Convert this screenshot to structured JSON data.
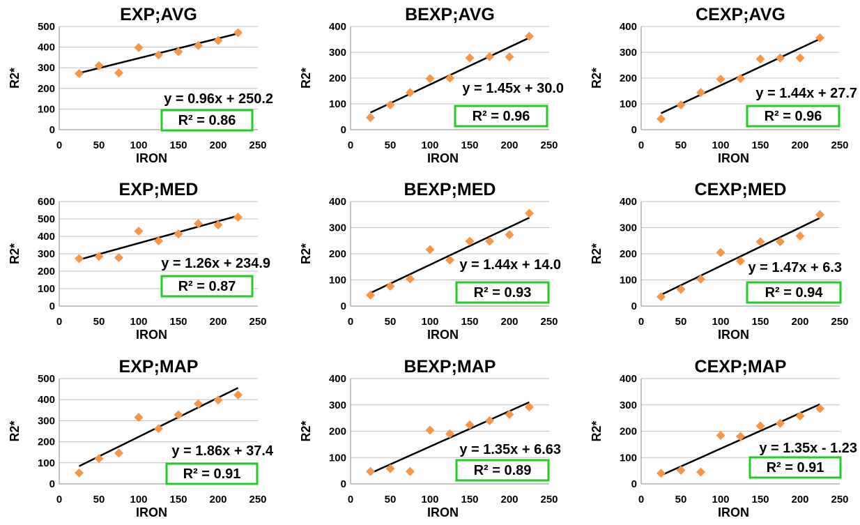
{
  "chart_data": [
    {
      "type": "scatter",
      "title": "EXP;AVG",
      "xlabel": "IRON",
      "ylabel": "R2*",
      "xlim": [
        0,
        250
      ],
      "ylim": [
        0,
        500
      ],
      "xticks": [
        0,
        50,
        100,
        150,
        200,
        250
      ],
      "yticks": [
        0,
        100,
        200,
        300,
        400,
        500
      ],
      "x": [
        25,
        50,
        75,
        100,
        125,
        150,
        175,
        200,
        225
      ],
      "y": [
        272,
        310,
        275,
        398,
        362,
        378,
        408,
        432,
        470
      ],
      "trendline": {
        "slope": 0.96,
        "intercept": 250.2
      },
      "equation": "y = 0.96x + 250.2",
      "r2_label": "R² = 0.86",
      "colors": {
        "point": "#F79646",
        "line": "#000000",
        "box": "#22CC22",
        "grid": "#C0C0C0"
      }
    },
    {
      "type": "scatter",
      "title": "BEXP;AVG",
      "xlabel": "IRON",
      "ylabel": "R2*",
      "xlim": [
        0,
        250
      ],
      "ylim": [
        0,
        400
      ],
      "xticks": [
        0,
        50,
        100,
        150,
        200,
        250
      ],
      "yticks": [
        0,
        100,
        200,
        300,
        400
      ],
      "x": [
        25,
        50,
        75,
        100,
        125,
        150,
        175,
        200,
        225
      ],
      "y": [
        47,
        96,
        144,
        198,
        200,
        278,
        283,
        282,
        362
      ],
      "trendline": {
        "slope": 1.45,
        "intercept": 30.0
      },
      "equation": "y = 1.45x + 30.0",
      "r2_label": "R² = 0.96",
      "colors": {
        "point": "#F79646",
        "line": "#000000",
        "box": "#22CC22",
        "grid": "#C0C0C0"
      }
    },
    {
      "type": "scatter",
      "title": "CEXP;AVG",
      "xlabel": "IRON",
      "ylabel": "R2*",
      "xlim": [
        0,
        250
      ],
      "ylim": [
        0,
        400
      ],
      "xticks": [
        0,
        50,
        100,
        150,
        200,
        250
      ],
      "yticks": [
        0,
        100,
        200,
        300,
        400
      ],
      "x": [
        25,
        50,
        75,
        100,
        125,
        150,
        175,
        200,
        225
      ],
      "y": [
        42,
        96,
        144,
        196,
        198,
        274,
        278,
        278,
        356
      ],
      "trendline": {
        "slope": 1.44,
        "intercept": 27.7
      },
      "equation": "y = 1.44x + 27.7",
      "r2_label": "R² = 0.96",
      "colors": {
        "point": "#F79646",
        "line": "#000000",
        "box": "#22CC22",
        "grid": "#C0C0C0"
      }
    },
    {
      "type": "scatter",
      "title": "EXP;MED",
      "xlabel": "IRON",
      "ylabel": "R2*",
      "xlim": [
        0,
        250
      ],
      "ylim": [
        0,
        600
      ],
      "xticks": [
        0,
        50,
        100,
        150,
        200,
        250
      ],
      "yticks": [
        0,
        100,
        200,
        300,
        400,
        500,
        600
      ],
      "x": [
        25,
        50,
        75,
        100,
        125,
        150,
        175,
        200,
        225
      ],
      "y": [
        272,
        285,
        278,
        430,
        374,
        414,
        473,
        466,
        510
      ],
      "trendline": {
        "slope": 1.26,
        "intercept": 234.9
      },
      "equation": "y = 1.26x + 234.9",
      "r2_label": "R² = 0.87",
      "colors": {
        "point": "#F79646",
        "line": "#000000",
        "box": "#22CC22",
        "grid": "#C0C0C0"
      }
    },
    {
      "type": "scatter",
      "title": "BEXP;MED",
      "xlabel": "IRON",
      "ylabel": "R2*",
      "xlim": [
        0,
        250
      ],
      "ylim": [
        0,
        400
      ],
      "xticks": [
        0,
        50,
        100,
        150,
        200,
        250
      ],
      "yticks": [
        0,
        100,
        200,
        300,
        400
      ],
      "x": [
        25,
        50,
        75,
        100,
        125,
        150,
        175,
        200,
        225
      ],
      "y": [
        42,
        76,
        104,
        216,
        176,
        248,
        248,
        273,
        355
      ],
      "trendline": {
        "slope": 1.44,
        "intercept": 14.0
      },
      "equation": "y = 1.44x + 14.0",
      "r2_label": "R² = 0.93",
      "colors": {
        "point": "#F79646",
        "line": "#000000",
        "box": "#22CC22",
        "grid": "#C0C0C0"
      }
    },
    {
      "type": "scatter",
      "title": "CEXP;MED",
      "xlabel": "IRON",
      "ylabel": "R2*",
      "xlim": [
        0,
        250
      ],
      "ylim": [
        0,
        400
      ],
      "xticks": [
        0,
        50,
        100,
        150,
        200,
        250
      ],
      "yticks": [
        0,
        100,
        200,
        300,
        400
      ],
      "x": [
        25,
        50,
        75,
        100,
        125,
        150,
        175,
        200,
        225
      ],
      "y": [
        36,
        64,
        103,
        205,
        172,
        246,
        246,
        268,
        350
      ],
      "trendline": {
        "slope": 1.47,
        "intercept": 6.3
      },
      "equation": "y = 1.47x + 6.3",
      "r2_label": "R² = 0.94",
      "colors": {
        "point": "#F79646",
        "line": "#000000",
        "box": "#22CC22",
        "grid": "#C0C0C0"
      }
    },
    {
      "type": "scatter",
      "title": "EXP;MAP",
      "xlabel": "IRON",
      "ylabel": "R2*",
      "xlim": [
        0,
        250
      ],
      "ylim": [
        0,
        500
      ],
      "xticks": [
        0,
        50,
        100,
        150,
        200,
        250
      ],
      "yticks": [
        0,
        100,
        200,
        300,
        400,
        500
      ],
      "x": [
        25,
        50,
        75,
        100,
        125,
        150,
        175,
        200,
        225
      ],
      "y": [
        52,
        120,
        146,
        316,
        262,
        328,
        380,
        398,
        422
      ],
      "trendline": {
        "slope": 1.86,
        "intercept": 37.4
      },
      "equation": "y = 1.86x + 37.4",
      "r2_label": "R² = 0.91",
      "colors": {
        "point": "#F79646",
        "line": "#000000",
        "box": "#22CC22",
        "grid": "#C0C0C0"
      }
    },
    {
      "type": "scatter",
      "title": "BEXP;MAP",
      "xlabel": "IRON",
      "ylabel": "R2*",
      "xlim": [
        0,
        250
      ],
      "ylim": [
        0,
        400
      ],
      "xticks": [
        0,
        50,
        100,
        150,
        200,
        250
      ],
      "yticks": [
        0,
        100,
        200,
        300,
        400
      ],
      "x": [
        25,
        50,
        75,
        100,
        125,
        150,
        175,
        200,
        225
      ],
      "y": [
        47,
        58,
        47,
        204,
        190,
        224,
        240,
        264,
        292
      ],
      "trendline": {
        "slope": 1.35,
        "intercept": 6.63
      },
      "equation": "y = 1.35x + 6.63",
      "r2_label": "R² = 0.89",
      "colors": {
        "point": "#F79646",
        "line": "#000000",
        "box": "#22CC22",
        "grid": "#C0C0C0"
      }
    },
    {
      "type": "scatter",
      "title": "CEXP;MAP",
      "xlabel": "IRON",
      "ylabel": "R2*",
      "xlim": [
        0,
        250
      ],
      "ylim": [
        0,
        400
      ],
      "xticks": [
        0,
        50,
        100,
        150,
        200,
        250
      ],
      "yticks": [
        0,
        100,
        200,
        300,
        400
      ],
      "x": [
        25,
        50,
        75,
        100,
        125,
        150,
        175,
        200,
        225
      ],
      "y": [
        40,
        52,
        45,
        184,
        180,
        220,
        230,
        258,
        286
      ],
      "trendline": {
        "slope": 1.35,
        "intercept": -1.23
      },
      "equation": "y = 1.35x - 1.23",
      "r2_label": "R² = 0.91",
      "colors": {
        "point": "#F79646",
        "line": "#000000",
        "box": "#22CC22",
        "grid": "#C0C0C0"
      }
    }
  ]
}
